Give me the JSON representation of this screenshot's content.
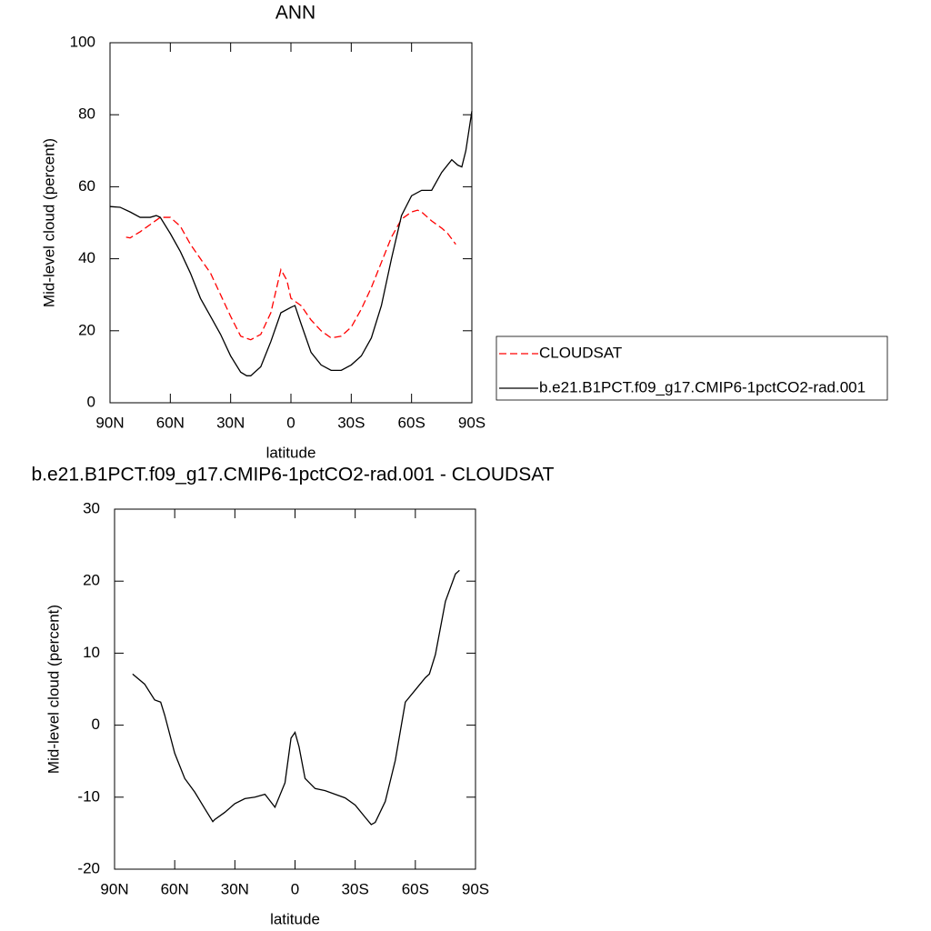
{
  "chart_data": [
    {
      "type": "line",
      "title": "ANN",
      "xlabel": "latitude",
      "ylabel": "Mid-level cloud (percent)",
      "xlim": [
        90,
        -90
      ],
      "ylim": [
        0,
        100
      ],
      "xticks": [
        {
          "value": 90,
          "label": "90N"
        },
        {
          "value": 60,
          "label": "60N"
        },
        {
          "value": 30,
          "label": "30N"
        },
        0,
        {
          "value": -30,
          "label": "30S"
        },
        {
          "value": -60,
          "label": "60S"
        },
        {
          "value": -90,
          "label": "90S"
        }
      ],
      "yticks": [
        0,
        20,
        40,
        60,
        80,
        100
      ],
      "legend": "right",
      "series": [
        {
          "name": "CLOUDSAT",
          "color": "#ff0000",
          "line_style": "dashed",
          "x": [
            82,
            80,
            75,
            70,
            65,
            60,
            55,
            50,
            45,
            40,
            35,
            30,
            25,
            20,
            15,
            10,
            5,
            2,
            0,
            -5,
            -10,
            -15,
            -20,
            -25,
            -30,
            -35,
            -40,
            -45,
            -50,
            -55,
            -60,
            -63,
            -65,
            -70,
            -75,
            -78,
            -82
          ],
          "values": [
            46,
            45.8,
            47.5,
            49.5,
            51.5,
            51.5,
            49,
            44,
            40,
            36,
            30,
            24,
            18.5,
            17.5,
            19,
            25,
            37,
            34,
            29,
            27,
            23,
            20,
            18,
            18.5,
            21,
            26,
            32,
            39,
            46,
            51,
            53,
            53.5,
            53,
            50.5,
            48.5,
            47,
            44
          ]
        },
        {
          "name": "b.e21.B1PCT.f09_g17.CMIP6-1pctCO2-rad.001",
          "color": "#000000",
          "line_style": "solid",
          "x": [
            90,
            85,
            80,
            75,
            70,
            67,
            65,
            60,
            55,
            50,
            45,
            40,
            35,
            30,
            25,
            22,
            20,
            15,
            10,
            5,
            0,
            -2,
            -5,
            -10,
            -15,
            -20,
            -25,
            -30,
            -35,
            -40,
            -45,
            -50,
            -55,
            -60,
            -65,
            -70,
            -75,
            -80,
            -83,
            -85,
            -87,
            -90
          ],
          "values": [
            54.5,
            54.3,
            53,
            51.5,
            51.5,
            52,
            51.5,
            47,
            42,
            36,
            29,
            24,
            19,
            13,
            8.5,
            7.5,
            7.5,
            10,
            17,
            25,
            26.5,
            27,
            22,
            14,
            10.5,
            9,
            9,
            10.5,
            13,
            18,
            27,
            40,
            52,
            57.5,
            59,
            59,
            64,
            67.5,
            66,
            65.5,
            70,
            81
          ]
        }
      ]
    },
    {
      "type": "line",
      "title": "b.e21.B1PCT.f09_g17.CMIP6-1pctCO2-rad.001 - CLOUDSAT",
      "xlabel": "latitude",
      "ylabel": "Mid-level cloud (percent)",
      "xlim": [
        90,
        -90
      ],
      "ylim": [
        -20,
        30
      ],
      "xticks": [
        {
          "value": 90,
          "label": "90N"
        },
        {
          "value": 60,
          "label": "60N"
        },
        {
          "value": 30,
          "label": "30N"
        },
        0,
        {
          "value": -30,
          "label": "30S"
        },
        {
          "value": -60,
          "label": "60S"
        },
        {
          "value": -90,
          "label": "90S"
        }
      ],
      "yticks": [
        -20,
        -10,
        0,
        10,
        20,
        30
      ],
      "series": [
        {
          "color": "#000000",
          "line_style": "solid",
          "x": [
            81,
            75,
            70,
            67,
            65,
            60,
            55,
            50,
            45,
            41,
            40,
            35,
            30,
            25,
            20,
            15,
            10,
            5,
            2,
            0,
            -2,
            -5,
            -10,
            -15,
            -20,
            -25,
            -30,
            -35,
            -38,
            -40,
            -45,
            -50,
            -55,
            -60,
            -65,
            -67,
            -70,
            -75,
            -80,
            -82
          ],
          "values": [
            7.1,
            5.7,
            3.5,
            3.2,
            1.4,
            -3.9,
            -7.4,
            -9.3,
            -11.6,
            -13.4,
            -13.1,
            -12.1,
            -10.9,
            -10.2,
            -10,
            -9.6,
            -11.4,
            -8,
            -1.8,
            -1,
            -3,
            -7.4,
            -8.8,
            -9.1,
            -9.6,
            -10.1,
            -11.1,
            -12.8,
            -13.8,
            -13.5,
            -10.6,
            -4.9,
            3.2,
            4.9,
            6.6,
            7.1,
            9.8,
            17.2,
            21,
            21.5
          ]
        }
      ]
    }
  ]
}
